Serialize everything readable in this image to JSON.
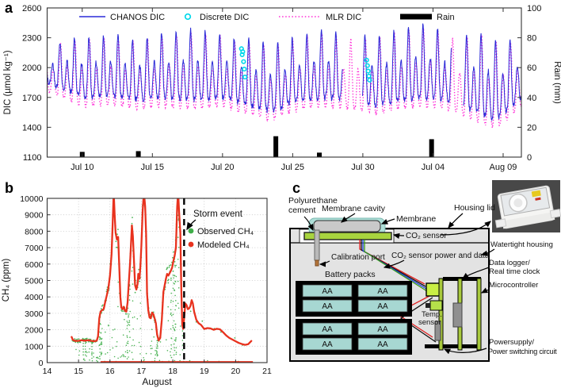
{
  "figure": {
    "panel_a": "a",
    "panel_b": "b",
    "panel_c": "c"
  },
  "chart_data": [
    {
      "id": "dic_rain_timeseries",
      "type": "line",
      "y_left": {
        "label": "DIC (µmol kg⁻¹)",
        "ticks": [
          1100,
          1400,
          1700,
          2000,
          2300,
          2600
        ],
        "range": [
          1100,
          2600
        ]
      },
      "y_right": {
        "label": "Rain (mm)",
        "ticks": [
          0,
          20,
          40,
          60,
          80,
          100
        ],
        "range": [
          0,
          100
        ]
      },
      "x": {
        "tick_days": [
          10,
          15,
          20,
          25,
          30,
          35,
          40
        ],
        "tick_labels": [
          "Jul 10",
          "Jul 15",
          "Jul 20",
          "Jul 25",
          "Jul 30",
          "Jul 04",
          "Aug 09"
        ],
        "domain_days": [
          7.5,
          41.3
        ]
      },
      "legend": [
        {
          "label": "CHANOS DIC",
          "color": "#2b2bd8",
          "marker": "line"
        },
        {
          "label": "Discrete DIC",
          "color": "#00d8ea",
          "marker": "circle"
        },
        {
          "label": "MLR DIC",
          "color": "#ff2bd6",
          "marker": "dotted"
        },
        {
          "label": "Rain",
          "color": "#000000",
          "marker": "bar"
        }
      ],
      "tidal_period_days": 0.5175,
      "series_envelope": [
        [
          7.5,
          2150,
          1850
        ],
        [
          8.5,
          2280,
          1800
        ],
        [
          10,
          2300,
          1700
        ],
        [
          12,
          2330,
          1720
        ],
        [
          14,
          2280,
          1680
        ],
        [
          16,
          2360,
          1700
        ],
        [
          18,
          2390,
          1680
        ],
        [
          20,
          2330,
          1700
        ],
        [
          22,
          2280,
          1620
        ],
        [
          23.5,
          2230,
          1560
        ],
        [
          25,
          2300,
          1650
        ],
        [
          27,
          2380,
          1700
        ],
        [
          29,
          2300,
          1680
        ],
        [
          31,
          2320,
          1620
        ],
        [
          33,
          2400,
          1680
        ],
        [
          35,
          2430,
          1700
        ],
        [
          36.5,
          2300,
          1650
        ],
        [
          38,
          2360,
          1560
        ],
        [
          39.5,
          2300,
          1480
        ],
        [
          41.3,
          2280,
          1700
        ]
      ],
      "chanos_gaps": [
        [
          28.55,
          29.95
        ],
        [
          36.3,
          37.15
        ]
      ],
      "mlr_offset": {
        "high": -25,
        "low": -85,
        "phase": 0.035
      },
      "discrete_dic": [
        [
          21.35,
          2190
        ],
        [
          21.4,
          2130
        ],
        [
          21.44,
          2160
        ],
        [
          21.5,
          2060
        ],
        [
          21.55,
          1985
        ],
        [
          21.6,
          1905
        ],
        [
          30.27,
          2075
        ],
        [
          30.33,
          2020
        ],
        [
          30.38,
          1965
        ],
        [
          30.43,
          1915
        ],
        [
          30.48,
          1875
        ]
      ],
      "rain_mm": [
        [
          10.0,
          3.5
        ],
        [
          14.0,
          4
        ],
        [
          23.8,
          14
        ],
        [
          26.9,
          3
        ],
        [
          34.9,
          12
        ]
      ]
    },
    {
      "id": "ch4_timeseries",
      "type": "line",
      "ylabel": "CH₄ (ppm)",
      "xlabel": "August",
      "yticks": [
        0,
        1000,
        2000,
        3000,
        4000,
        5000,
        6000,
        7000,
        8000,
        9000,
        10000
      ],
      "xticks": [
        14,
        15,
        16,
        17,
        18,
        19,
        20,
        21
      ],
      "ylim": [
        0,
        10000
      ],
      "xlim": [
        14,
        21
      ],
      "storm_day": 18.36,
      "annotation": "Storm event",
      "legend": [
        {
          "label": "Observed CH₄",
          "color": "#3fae49"
        },
        {
          "label": "Modeled CH₄",
          "color": "#e8321e"
        }
      ],
      "modeled_ppm": [
        [
          14.78,
          1560
        ],
        [
          14.82,
          1380
        ],
        [
          14.9,
          1320
        ],
        [
          15.0,
          1330
        ],
        [
          15.1,
          1360
        ],
        [
          15.2,
          1340
        ],
        [
          15.3,
          1360
        ],
        [
          15.4,
          1330
        ],
        [
          15.5,
          1300
        ],
        [
          15.58,
          1340
        ],
        [
          15.62,
          1600
        ],
        [
          15.66,
          2700
        ],
        [
          15.7,
          3100
        ],
        [
          15.75,
          3200
        ],
        [
          15.8,
          3260
        ],
        [
          15.85,
          3700
        ],
        [
          15.9,
          4100
        ],
        [
          15.95,
          4550
        ],
        [
          16.0,
          5300
        ],
        [
          16.05,
          6600
        ],
        [
          16.08,
          8200
        ],
        [
          16.12,
          10400
        ],
        [
          16.15,
          9000
        ],
        [
          16.18,
          7900
        ],
        [
          16.22,
          7500
        ],
        [
          16.26,
          7650
        ],
        [
          16.3,
          5600
        ],
        [
          16.33,
          4000
        ],
        [
          16.36,
          3350
        ],
        [
          16.4,
          3250
        ],
        [
          16.44,
          3400
        ],
        [
          16.48,
          3150
        ],
        [
          16.52,
          3100
        ],
        [
          16.56,
          3650
        ],
        [
          16.6,
          4900
        ],
        [
          16.64,
          6100
        ],
        [
          16.68,
          7600
        ],
        [
          16.7,
          8350
        ],
        [
          16.73,
          7700
        ],
        [
          16.76,
          6400
        ],
        [
          16.8,
          4700
        ],
        [
          16.84,
          4450
        ],
        [
          16.88,
          4800
        ],
        [
          16.9,
          5400
        ],
        [
          16.94,
          5100
        ],
        [
          16.97,
          5900
        ],
        [
          17.0,
          7100
        ],
        [
          17.04,
          9200
        ],
        [
          17.08,
          10400
        ],
        [
          17.12,
          9500
        ],
        [
          17.15,
          7800
        ],
        [
          17.18,
          4200
        ],
        [
          17.22,
          3200
        ],
        [
          17.26,
          2750
        ],
        [
          17.3,
          2700
        ],
        [
          17.34,
          3050
        ],
        [
          17.38,
          2950
        ],
        [
          17.42,
          2700
        ],
        [
          17.46,
          2400
        ],
        [
          17.5,
          1700
        ],
        [
          17.55,
          1350
        ],
        [
          17.6,
          1500
        ],
        [
          17.65,
          2600
        ],
        [
          17.7,
          4300
        ],
        [
          17.74,
          4700
        ],
        [
          17.78,
          5100
        ],
        [
          17.82,
          5400
        ],
        [
          17.86,
          5300
        ],
        [
          17.9,
          5450
        ],
        [
          17.94,
          5600
        ],
        [
          17.98,
          5800
        ],
        [
          18.02,
          6200
        ],
        [
          18.06,
          6500
        ],
        [
          18.1,
          7000
        ],
        [
          18.14,
          9500
        ],
        [
          18.17,
          10400
        ],
        [
          18.2,
          9200
        ],
        [
          18.24,
          7900
        ],
        [
          18.27,
          4500
        ],
        [
          18.3,
          2300
        ],
        [
          18.33,
          2050
        ],
        [
          18.37,
          2900
        ],
        [
          18.4,
          3600
        ],
        [
          18.44,
          3500
        ],
        [
          18.48,
          3250
        ],
        [
          18.52,
          3300
        ],
        [
          18.56,
          3450
        ],
        [
          18.6,
          3800
        ],
        [
          18.64,
          3600
        ],
        [
          18.68,
          3100
        ],
        [
          18.75,
          2600
        ],
        [
          18.82,
          2400
        ],
        [
          18.9,
          2300
        ],
        [
          19.0,
          2050
        ],
        [
          19.1,
          2100
        ],
        [
          19.2,
          2080
        ],
        [
          19.3,
          2000
        ],
        [
          19.4,
          2060
        ],
        [
          19.5,
          2030
        ],
        [
          19.6,
          1850
        ],
        [
          19.7,
          1650
        ],
        [
          19.8,
          1500
        ],
        [
          19.9,
          1400
        ],
        [
          20.0,
          1300
        ],
        [
          20.1,
          1200
        ],
        [
          20.2,
          1130
        ],
        [
          20.3,
          1080
        ],
        [
          20.4,
          1120
        ],
        [
          20.5,
          1320
        ]
      ],
      "baseline_zero": {
        "from": 15.7,
        "to": 20.55
      },
      "observed_scatter": {
        "jitter_frac": 0.09,
        "stray_columns": [
          15.67,
          15.72,
          16.57,
          16.62,
          17.5,
          17.95,
          18.05,
          18.1
        ],
        "stray_count": 120,
        "seed": 7
      }
    }
  ],
  "diagram": {
    "labels": {
      "polyurethane_1": "Polyurethane",
      "polyurethane_2": "cement",
      "membrane_cavity": "Membrane cavity",
      "membrane": "Membrane",
      "housing_lid": "Housing lid",
      "co2_sensor": "CO₂ sensor",
      "watertight": "Watertight housing",
      "calibration": "Calibration port",
      "power_data": "CO₂ sensor power and data",
      "battery": "Battery packs",
      "datalogger_1": "Data logger/",
      "datalogger_2": "Real time clock",
      "micro": "Microcontroller",
      "temp_1": "Temp.",
      "temp_2": "sensor",
      "power_1": "Powersupply/",
      "power_2": "Power switching circuit",
      "cell": "AA"
    },
    "colors": {
      "housing": "#e3e3e3",
      "board": "#a8c93c",
      "cell": "#a7d7d2",
      "membrane": "#aedfd8",
      "connector": "#c9ef45",
      "wire_red": "#e02020",
      "wire_blue": "#2040e0",
      "wire_green": "#3a9a1a",
      "wire_black": "#111111"
    }
  }
}
